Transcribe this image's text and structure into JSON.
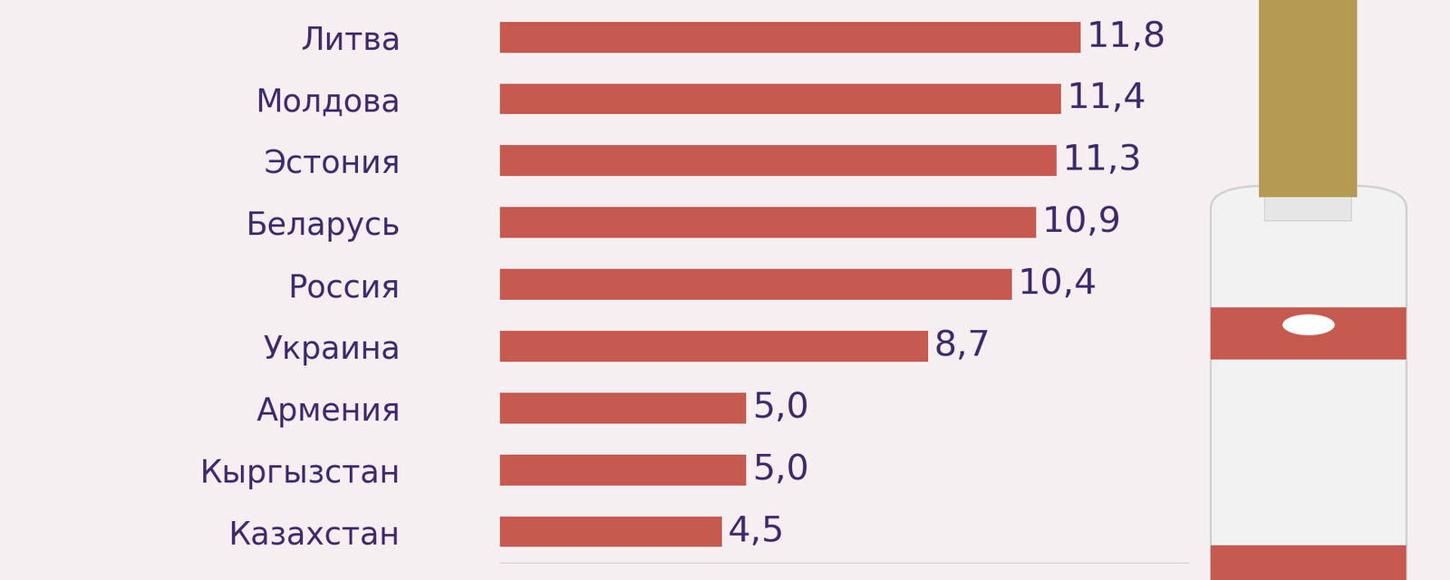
{
  "chart_data": {
    "type": "bar",
    "orientation": "horizontal",
    "categories": [
      "Литва",
      "Молдова",
      "Эстония",
      "Беларусь",
      "Россия",
      "Украина",
      "Армения",
      "Кыргызстан",
      "Казахстан"
    ],
    "values": [
      11.8,
      11.4,
      11.3,
      10.9,
      10.4,
      8.7,
      5.0,
      5.0,
      4.5
    ],
    "value_labels": [
      "11,8",
      "11,4",
      "11,3",
      "10,9",
      "10,4",
      "8,7",
      "5,0",
      "5,0",
      "4,5"
    ],
    "color": "#c65a50",
    "xlim": [
      0,
      14
    ],
    "data_labels": true,
    "tick_labels": "y",
    "grid": false
  }
}
